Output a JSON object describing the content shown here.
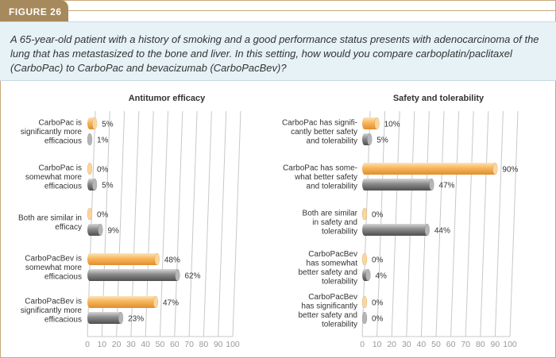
{
  "figure_label": "FIGURE 26",
  "question": "A 65-year-old patient with a history of smoking and a good performance status presents with adenocarcinoma of the lung that has metastasized to the bone and liver. In this setting, how would you compare carboplatin/paclitaxel (CarboPac) to CarboPac and bevacizumab (CarboPacBev)?",
  "colors": {
    "bar_a": "#f7b55a",
    "bar_b": "#8a8a8a",
    "tab": "#a6895c",
    "question_bg": "#e6f2f6"
  },
  "chart_data": [
    {
      "type": "bar",
      "orientation": "horizontal",
      "title": "Antitumor efficacy",
      "categories": [
        [
          "CarboPac is",
          "significantly more",
          "efficacious"
        ],
        [
          "CarboPac is",
          "somewhat more",
          "efficacious"
        ],
        [
          "Both are similar in",
          "efficacy"
        ],
        [
          "CarboPacBev is",
          "somewhat more",
          "efficacious"
        ],
        [
          "CarboPacBev is",
          "significantly more",
          "efficacious"
        ]
      ],
      "series": [
        {
          "values": [
            5,
            0,
            0,
            48,
            47
          ],
          "labels": [
            "5%",
            "0%",
            "0%",
            "48%",
            "47%"
          ]
        },
        {
          "values": [
            1,
            5,
            9,
            62,
            23
          ],
          "labels": [
            "1%",
            "5%",
            "9%",
            "62%",
            "23%"
          ]
        }
      ],
      "xlim": [
        0,
        100
      ],
      "xticks": [
        "0",
        "10",
        "20",
        "30",
        "40",
        "50",
        "60",
        "70",
        "80",
        "90",
        "100"
      ],
      "grid": true
    },
    {
      "type": "bar",
      "orientation": "horizontal",
      "title": "Safety and tolerability",
      "categories": [
        [
          "CarboPac has signifi-",
          "cantly better safety",
          "and tolerability"
        ],
        [
          "CarboPac has some-",
          "what better safety",
          "and tolerability"
        ],
        [
          "Both are similar",
          "in safety and",
          "tolerability"
        ],
        [
          "CarboPacBev",
          "has somewhat",
          "better safety and",
          "tolerability"
        ],
        [
          "CarboPacBev",
          "has significantly",
          "better safety and",
          "tolerability"
        ]
      ],
      "series": [
        {
          "values": [
            10,
            90,
            0,
            0,
            0
          ],
          "labels": [
            "10%",
            "90%",
            "0%",
            "0%",
            "0%"
          ]
        },
        {
          "values": [
            5,
            47,
            44,
            4,
            0
          ],
          "labels": [
            "5%",
            "47%",
            "44%",
            "4%",
            "0%"
          ]
        }
      ],
      "xlim": [
        0,
        100
      ],
      "xticks": [
        "0",
        "10",
        "20",
        "30",
        "40",
        "50",
        "60",
        "70",
        "80",
        "90",
        "100"
      ],
      "grid": true
    }
  ]
}
